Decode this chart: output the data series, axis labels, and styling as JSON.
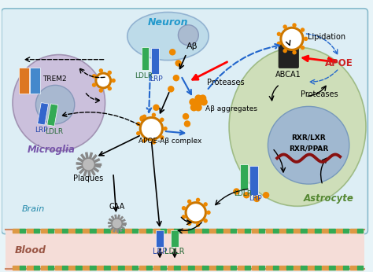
{
  "bg_color": "#e8f4f8",
  "brain_bg": "#ddeef5",
  "blood_bg": "#f5ddd8",
  "microglia_color": "#c8b8d8",
  "neuron_color": "#b8d8e8",
  "astrocyte_color": "#c8d8a0",
  "nucleus_color": "#a0b8d0",
  "labels": {
    "neuron": "Neuron",
    "microglia": "Microglia",
    "astrocyte": "Astrocyte",
    "brain": "Brain",
    "blood": "Blood",
    "trem2": "TREM2",
    "lrp_micro": "LRP",
    "ldlr_micro": "LDLR",
    "ldlr_neuro": "LDLR",
    "lrp_neuro": "LRP",
    "abeta": "Aβ",
    "abeta_agg": "Aβ aggregates",
    "apoe_complex": "APOE-Aβ complex",
    "plaques": "Plaques",
    "caa": "CAA",
    "proteases_left": "Proteases",
    "lipidation": "Lipidation",
    "abca1": "ABCA1",
    "apoe": "APOE",
    "proteases_right": "Proteases",
    "rxr_lxr": "RXR/LXR",
    "rxr_ppar": "RXR/PPAR",
    "ldlr_astro": "LDLR",
    "lrp_astro": "LRP",
    "lrp_blood": "LRP",
    "ldlr_blood": "LDLR"
  }
}
